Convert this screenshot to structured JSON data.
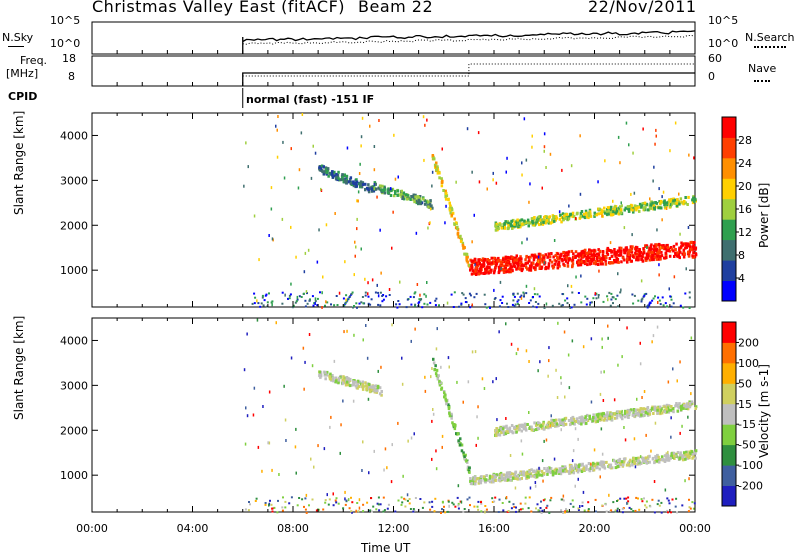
{
  "header": {
    "station": "Christmas Valley East (fitACF)",
    "beam": "Beam 22",
    "date": "22/Nov/2011"
  },
  "summary_panels": {
    "nsky_label": "N.Sky",
    "nsearch_label": "N.Search",
    "noise_ticks": [
      "10^5",
      "10^0"
    ],
    "freq_label_1": "Freq.",
    "freq_label_2": "[MHz]",
    "freq_ticks": [
      "18",
      "8"
    ],
    "nave_label": "Nave",
    "nave_ticks": [
      "60",
      "0"
    ],
    "cpid_label": "CPID",
    "cpid_value": "normal (fast) -151 IF"
  },
  "colors": {
    "power_scale": [
      "#0000ff",
      "#1f3f9f",
      "#3f6f6f",
      "#2f9f4f",
      "#9fcf3f",
      "#ffcf00",
      "#ff8f00",
      "#ff3f00",
      "#ff0000"
    ],
    "velocity_scale": [
      "#1f1fbf",
      "#3f5f9f",
      "#2f8f3f",
      "#7fcf3f",
      "#bfbfbf",
      "#cfcf5f",
      "#ffaf00",
      "#ff6f00",
      "#ff0000"
    ]
  },
  "chart_data": [
    {
      "type": "heatmap",
      "name": "power",
      "ylabel": "Slant Range [km]",
      "ylim": [
        180,
        4500
      ],
      "yticks": [
        1000,
        2000,
        3000,
        4000
      ],
      "xlim": [
        0,
        24
      ],
      "colorbar_label": "Power [dB]",
      "colorbar_ticks": [
        "28",
        "24",
        "20",
        "16",
        "12",
        "8",
        "4"
      ],
      "colorbar_range": [
        0,
        32
      ],
      "features": [
        {
          "t0": 9.0,
          "t1": 11.2,
          "r0": 3300,
          "r1": 2800,
          "level": 2
        },
        {
          "t0": 11.2,
          "t1": 13.5,
          "r0": 2900,
          "r1": 2500,
          "level": 3
        },
        {
          "t0": 13.5,
          "t1": 15.0,
          "r0": 3600,
          "r1": 1100,
          "level": 5
        },
        {
          "t0": 15.0,
          "t1": 24.0,
          "r0": 1100,
          "r1": 1500,
          "level": 8
        },
        {
          "t0": 16.0,
          "t1": 24.0,
          "r0": 2000,
          "r1": 2600,
          "level": 4
        }
      ]
    },
    {
      "type": "heatmap",
      "name": "velocity",
      "ylabel": "Slant Range [km]",
      "ylim": [
        180,
        4500
      ],
      "yticks": [
        1000,
        2000,
        3000,
        4000
      ],
      "xlim": [
        0,
        24
      ],
      "colorbar_label": "Velocity [m s-1]",
      "colorbar_ticks": [
        "200",
        "100",
        "50",
        "15",
        "-15",
        "-50",
        "-100",
        "-200"
      ],
      "features": [
        {
          "t0": 9.0,
          "t1": 11.5,
          "r0": 3300,
          "r1": 2900,
          "level": 4
        },
        {
          "t0": 13.5,
          "t1": 15.0,
          "r0": 3600,
          "r1": 1100,
          "level": 3
        },
        {
          "t0": 15.0,
          "t1": 24.0,
          "r0": 900,
          "r1": 1500,
          "level": 4
        },
        {
          "t0": 16.0,
          "t1": 24.0,
          "r0": 2000,
          "r1": 2600,
          "level": 4
        }
      ]
    }
  ],
  "xaxis": {
    "ticks": [
      "00:00",
      "04:00",
      "08:00",
      "12:00",
      "16:00",
      "20:00",
      "00:00"
    ],
    "label": "Time UT"
  }
}
